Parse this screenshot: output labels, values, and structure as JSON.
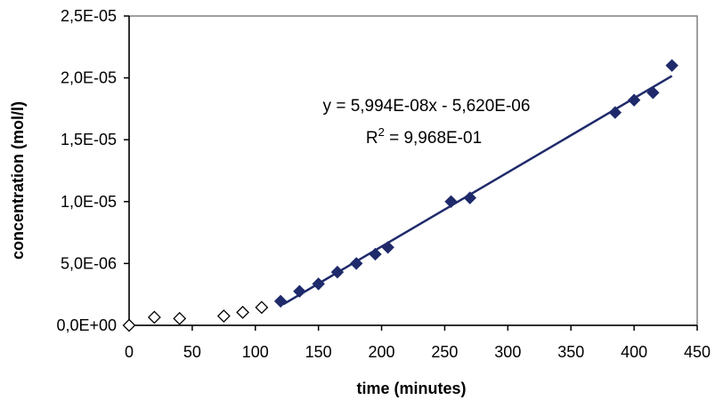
{
  "chart_data": {
    "type": "scatter",
    "xlabel": "time (minutes)",
    "ylabel": "concentration (mol/l)",
    "xlim": [
      0,
      450
    ],
    "ylim": [
      0,
      2.5e-05
    ],
    "x_ticks": [
      0,
      50,
      100,
      150,
      200,
      250,
      300,
      350,
      400,
      450
    ],
    "x_tick_labels": [
      "0",
      "50",
      "100",
      "150",
      "200",
      "250",
      "300",
      "350",
      "400",
      "450"
    ],
    "y_ticks": [
      0,
      5e-06,
      1e-05,
      1.5e-05,
      2e-05,
      2.5e-05
    ],
    "y_tick_labels": [
      "0,0E+00",
      "5,0E-06",
      "1,0E-05",
      "1,5E-05",
      "2,0E-05",
      "2,5E-05"
    ],
    "grid": false,
    "series": [
      {
        "marker": "diamond-open",
        "color": "#000000",
        "x": [
          0,
          20,
          40,
          75,
          90,
          105
        ],
        "y": [
          0.0,
          6.5e-07,
          5.5e-07,
          7.5e-07,
          1.05e-06,
          1.45e-06
        ]
      },
      {
        "marker": "diamond-filled",
        "color": "#1f2a6b",
        "x": [
          120,
          135,
          150,
          165,
          180,
          195,
          205,
          255,
          270,
          385,
          400,
          415,
          430
        ],
        "y": [
          1.95e-06,
          2.75e-06,
          3.35e-06,
          4.3e-06,
          5e-06,
          5.75e-06,
          6.3e-06,
          1e-05,
          1.03e-05,
          1.72e-05,
          1.82e-05,
          1.88e-05,
          2.1e-05
        ]
      }
    ],
    "trendline": {
      "color": "#1f2a6b",
      "slope": 5.994e-08,
      "intercept": -5.62e-06,
      "x_range": [
        122,
        430
      ]
    },
    "annotations": {
      "equation": "y = 5,994E-08x - 5,620E-06",
      "r2_prefix": "R",
      "r2_exponent": "2",
      "r2_value": " = 9,968E-01"
    }
  }
}
